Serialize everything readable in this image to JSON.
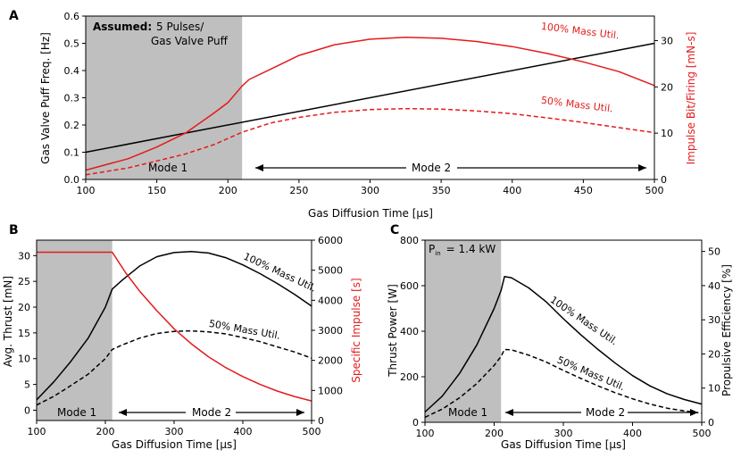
{
  "colors": {
    "black": "#000000",
    "red": "#e41a1c",
    "shade": "#bfbfbf"
  },
  "chart_data": [
    {
      "panel": "A",
      "type": "line",
      "xlabel": "Gas Diffusion Time [μs]",
      "ylabel": "Gas Valve Puff Freq. [Hz]",
      "ylabel_right": "Impulse Bit/Firing [mN-s]",
      "xlim": [
        100,
        500
      ],
      "ylim": [
        0,
        0.6
      ],
      "ylim_right": [
        0,
        35.3
      ],
      "xticks": [
        "100",
        "150",
        "200",
        "250",
        "300",
        "350",
        "400",
        "450",
        "500"
      ],
      "yticks": [
        "0.0",
        "0.1",
        "0.2",
        "0.3",
        "0.4",
        "0.5",
        "0.6"
      ],
      "yticks_right": [
        "0",
        "10",
        "20",
        "30"
      ],
      "mode1_end": 210,
      "annotations": {
        "assumed_bold": "Assumed:",
        "assumed_text1": "5 Pulses/",
        "assumed_text2": "Gas Valve Puff",
        "mode1": "Mode 1",
        "mode2": "Mode 2"
      },
      "series": [
        {
          "name": "Gas Valve Puff Freq.",
          "axis": "left",
          "color": "#000000",
          "dash": "solid",
          "x": [
            100,
            500
          ],
          "y": [
            0.1,
            0.5
          ]
        },
        {
          "name": "100% Mass Util.",
          "axis": "right",
          "color": "#e41a1c",
          "dash": "solid",
          "label": "100% Mass Util.",
          "x": [
            100,
            130,
            150,
            170,
            190,
            200,
            210,
            215,
            230,
            250,
            275,
            300,
            325,
            350,
            375,
            400,
            425,
            450,
            475,
            500
          ],
          "y": [
            2,
            4.5,
            7,
            10,
            14.3,
            16.6,
            20.2,
            21.6,
            23.8,
            26.8,
            29.1,
            30.3,
            30.7,
            30.5,
            29.8,
            28.7,
            27.2,
            25.4,
            23.3,
            20.3
          ]
        },
        {
          "name": "50% Mass Util.",
          "axis": "right",
          "color": "#e41a1c",
          "dash": "dashed",
          "label": "50% Mass Util.",
          "x": [
            100,
            130,
            150,
            170,
            190,
            210,
            230,
            250,
            275,
            300,
            325,
            350,
            375,
            400,
            425,
            450,
            475,
            500
          ],
          "y": [
            1,
            2.5,
            4,
            5.5,
            7.5,
            10.2,
            12.2,
            13.4,
            14.5,
            15.1,
            15.3,
            15.2,
            14.8,
            14.2,
            13.3,
            12.3,
            11.2,
            10.1
          ]
        }
      ]
    },
    {
      "panel": "B",
      "type": "line",
      "xlabel": "Gas Diffusion Time [μs]",
      "ylabel": "Avg. Thrust [mN]",
      "ylabel_right": "Specific Impulse [s]",
      "xlim": [
        100,
        500
      ],
      "ylim": [
        -2,
        33
      ],
      "ylim_right": [
        0,
        6000
      ],
      "xticks": [
        "100",
        "200",
        "300",
        "400",
        "500"
      ],
      "yticks": [
        "0",
        "5",
        "10",
        "15",
        "20",
        "25",
        "30"
      ],
      "yticks_right": [
        "0",
        "1000",
        "2000",
        "3000",
        "4000",
        "5000",
        "6000"
      ],
      "mode1_end": 210,
      "annotations": {
        "mode1": "Mode 1",
        "mode2": "Mode 2"
      },
      "series": [
        {
          "name": "100% Mass Util.",
          "axis": "left",
          "color": "#000000",
          "dash": "solid",
          "label": "100% Mass Util.",
          "x": [
            100,
            125,
            150,
            175,
            200,
            210,
            225,
            250,
            275,
            300,
            325,
            350,
            375,
            400,
            425,
            450,
            475,
            500
          ],
          "y": [
            2,
            5.5,
            9.5,
            14,
            20,
            23.5,
            25.3,
            28,
            29.8,
            30.6,
            30.8,
            30.5,
            29.6,
            28.2,
            26.5,
            24.6,
            22.5,
            20.2
          ]
        },
        {
          "name": "50% Mass Util.",
          "axis": "left",
          "color": "#000000",
          "dash": "dashed",
          "label": "50% Mass Util.",
          "x": [
            100,
            125,
            150,
            175,
            200,
            210,
            225,
            250,
            275,
            300,
            325,
            350,
            375,
            400,
            425,
            450,
            475,
            500
          ],
          "y": [
            1,
            2.7,
            4.8,
            7,
            10,
            11.8,
            12.7,
            14,
            14.9,
            15.3,
            15.4,
            15.2,
            14.8,
            14.1,
            13.3,
            12.3,
            11.3,
            10.1
          ]
        },
        {
          "name": "Specific Impulse",
          "axis": "right",
          "color": "#e41a1c",
          "dash": "solid",
          "x": [
            100,
            210,
            230,
            250,
            275,
            300,
            325,
            350,
            375,
            400,
            425,
            450,
            475,
            500
          ],
          "y": [
            5600,
            5600,
            4900,
            4300,
            3650,
            3050,
            2550,
            2120,
            1760,
            1460,
            1200,
            980,
            800,
            650
          ]
        }
      ]
    },
    {
      "panel": "C",
      "type": "line",
      "xlabel": "Gas Diffusion Time [μs]",
      "ylabel": "Thrust Power [W]",
      "ylabel_right": "Propulsive Efficiency [%]",
      "xlim": [
        100,
        500
      ],
      "ylim": [
        0,
        800
      ],
      "ylim_right": [
        0,
        53.3
      ],
      "xticks": [
        "100",
        "200",
        "300",
        "400",
        "500"
      ],
      "yticks": [
        "0",
        "200",
        "400",
        "600",
        "800"
      ],
      "yticks_right": [
        "0",
        "10",
        "20",
        "30",
        "40",
        "50"
      ],
      "mode1_end": 210,
      "annotations": {
        "pin_label": "P",
        "pin_sub": "in",
        "pin_value": "= 1.4 kW",
        "mode1": "Mode 1",
        "mode2": "Mode 2"
      },
      "series": [
        {
          "name": "100% Mass Util.",
          "axis": "left",
          "color": "#000000",
          "dash": "solid",
          "label": "100% Mass Util.",
          "x": [
            100,
            125,
            150,
            175,
            200,
            210,
            215,
            225,
            250,
            275,
            300,
            325,
            350,
            375,
            400,
            425,
            450,
            475,
            500
          ],
          "y": [
            45,
            115,
            215,
            340,
            500,
            580,
            640,
            635,
            590,
            530,
            455,
            385,
            320,
            260,
            205,
            160,
            125,
            100,
            80
          ]
        },
        {
          "name": "50% Mass Util.",
          "axis": "left",
          "color": "#000000",
          "dash": "dashed",
          "label": "50% Mass Util.",
          "x": [
            100,
            125,
            150,
            175,
            200,
            210,
            215,
            225,
            250,
            275,
            300,
            325,
            350,
            375,
            400,
            425,
            450,
            475,
            500
          ],
          "y": [
            22,
            58,
            108,
            170,
            250,
            290,
            320,
            318,
            295,
            265,
            228,
            193,
            160,
            130,
            103,
            80,
            62,
            50,
            40
          ]
        }
      ]
    }
  ]
}
